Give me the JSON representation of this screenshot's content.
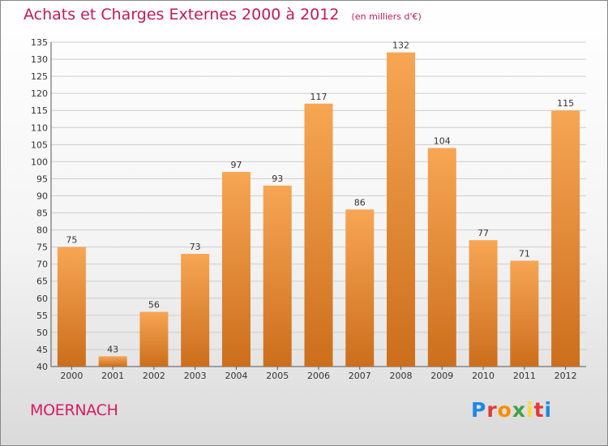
{
  "header": {
    "title": "Achats et Charges Externes 2000 à 2012",
    "subtitle": "(en milliers d'€)"
  },
  "footer": {
    "commune": "MOERNACH",
    "logo_letters": [
      "P",
      "r",
      "o",
      "x",
      "i",
      "t",
      "i"
    ],
    "logo_colors": [
      "#1e88e5",
      "#e53935",
      "#fb8c00",
      "#43a047",
      "#fdd835",
      "#e53935",
      "#1e88e5"
    ]
  },
  "colors": {
    "title": "#c2185b",
    "bar_top": "#f7a654",
    "bar_bottom": "#cc6e1c",
    "grid": "#cccccc"
  },
  "chart_data": {
    "type": "bar",
    "title": "Achats et Charges Externes 2000 à 2012",
    "xlabel": "",
    "ylabel": "",
    "categories": [
      "2000",
      "2001",
      "2002",
      "2003",
      "2004",
      "2005",
      "2006",
      "2007",
      "2008",
      "2009",
      "2010",
      "2011",
      "2012"
    ],
    "values": [
      75,
      43,
      56,
      73,
      97,
      93,
      117,
      86,
      132,
      104,
      77,
      71,
      115
    ],
    "ylim": [
      40,
      135
    ],
    "yticks": [
      40,
      45,
      50,
      55,
      60,
      65,
      70,
      75,
      80,
      85,
      90,
      95,
      100,
      105,
      110,
      115,
      120,
      125,
      130,
      135
    ],
    "grid": true,
    "legend": "none"
  }
}
